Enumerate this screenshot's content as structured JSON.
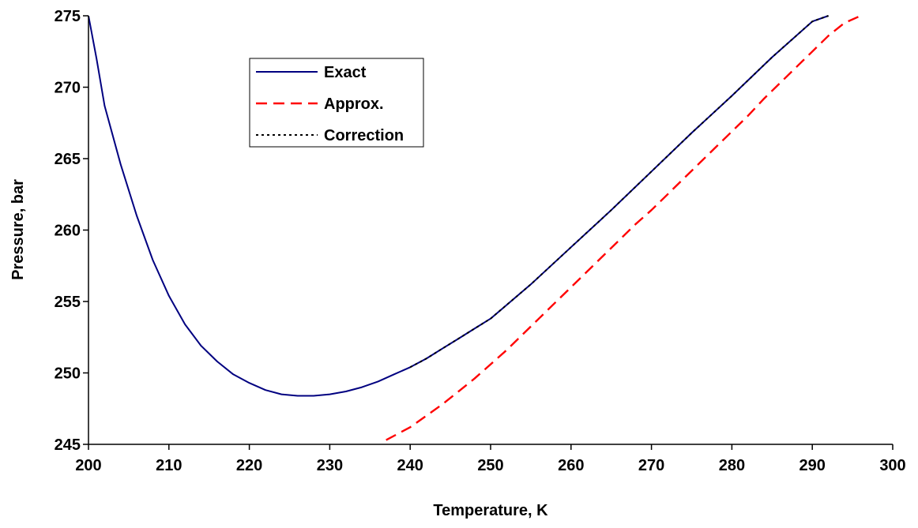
{
  "chart_data": {
    "type": "line",
    "xlabel": "Temperature, K",
    "ylabel": "Pressure, bar",
    "xlim": [
      200,
      300
    ],
    "ylim": [
      245,
      275
    ],
    "xticks": [
      "200",
      "210",
      "220",
      "230",
      "240",
      "250",
      "260",
      "270",
      "280",
      "290",
      "300"
    ],
    "yticks": [
      "245",
      "250",
      "255",
      "260",
      "265",
      "270",
      "275"
    ],
    "grid": false,
    "legend_position": "upper-left inside",
    "series": [
      {
        "name": "Exact",
        "color": "#000080",
        "style": "solid",
        "x": [
          200,
          201,
          202,
          204,
          206,
          208,
          210,
          212,
          214,
          216,
          218,
          220,
          222,
          224,
          226,
          228,
          230,
          232,
          234,
          236,
          238,
          240,
          242,
          244,
          246,
          248,
          250,
          255,
          260,
          265,
          270,
          275,
          280,
          285,
          290,
          292
        ],
        "y": [
          275,
          272,
          268.7,
          264.6,
          261.0,
          257.9,
          255.4,
          253.4,
          251.9,
          250.8,
          249.9,
          249.3,
          248.8,
          248.5,
          248.4,
          248.4,
          248.5,
          248.7,
          249.0,
          249.4,
          249.9,
          250.4,
          251.0,
          251.7,
          252.4,
          253.1,
          253.8,
          256.2,
          258.8,
          261.4,
          264.1,
          266.8,
          269.4,
          272.1,
          274.6,
          275.6
        ]
      },
      {
        "name": "Approx.",
        "color": "#ff0000",
        "style": "dashed",
        "x": [
          237,
          240,
          242,
          244,
          246,
          248,
          250,
          252,
          254,
          256,
          258,
          260,
          262,
          264,
          266,
          268,
          270,
          272,
          274,
          276,
          278,
          280,
          282,
          284,
          286,
          288,
          290,
          292,
          294,
          296
        ],
        "y": [
          245.3,
          246.2,
          247.0,
          247.8,
          248.7,
          249.6,
          250.6,
          251.6,
          252.7,
          253.8,
          254.9,
          256.0,
          257.1,
          258.2,
          259.3,
          260.4,
          261.4,
          262.5,
          263.6,
          264.7,
          265.8,
          266.9,
          268.0,
          269.2,
          270.3,
          271.4,
          272.5,
          273.6,
          274.5,
          275.5
        ]
      },
      {
        "name": "Correction",
        "color": "#000000",
        "style": "dotted",
        "x": [
          240,
          242,
          244,
          246,
          248,
          250,
          255,
          260,
          265,
          270,
          275,
          280,
          285,
          290,
          292
        ],
        "y": [
          250.4,
          251.0,
          251.7,
          252.4,
          253.1,
          253.8,
          256.2,
          258.8,
          261.4,
          264.1,
          266.8,
          269.4,
          272.1,
          274.6,
          275.6
        ]
      }
    ]
  }
}
